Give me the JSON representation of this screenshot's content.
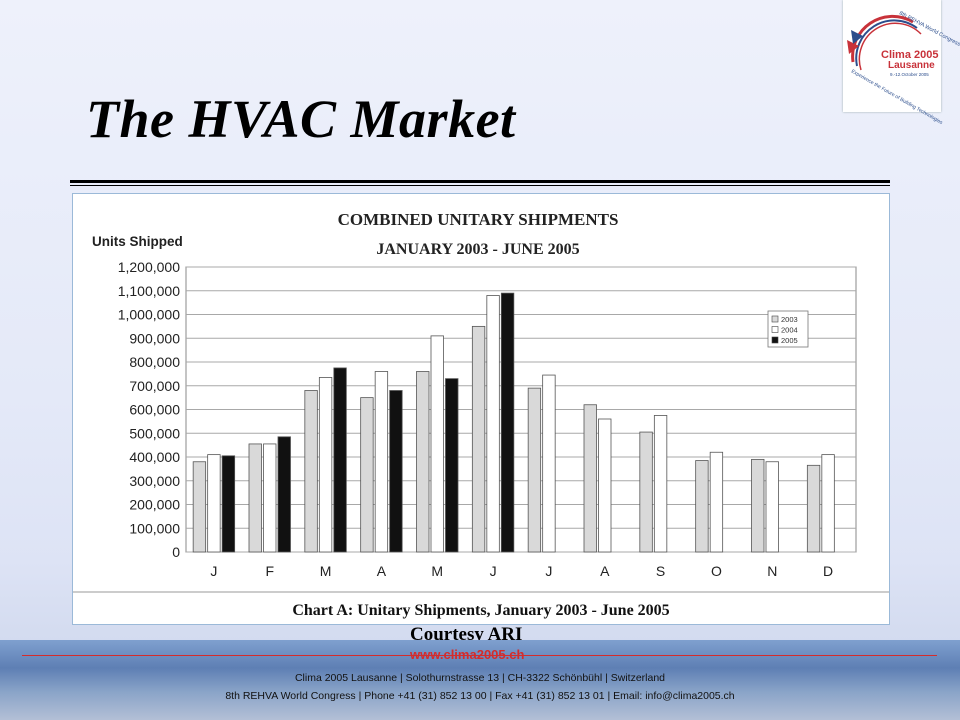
{
  "slide": {
    "title": "The HVAC Market",
    "courtesy": "Courtesy ARI"
  },
  "logo": {
    "title": "Clima 2005",
    "subtitle": "Lausanne",
    "dates": "9.-12.October 2005",
    "arc_top": "8th REHVA World Congress",
    "arc_bottom": "Experience the Future of Building Technologies"
  },
  "footer": {
    "url": "www.clima2005.ch",
    "line1": "Clima 2005 Lausanne | Solothurnstrasse 13 | CH-3322 Schönbühl | Switzerland",
    "line2": "8th REHVA World Congress | Phone +41 (31) 852 13 00 | Fax +41 (31) 852 13 01 | Email: info@clima2005.ch"
  },
  "colors": {
    "series_2003": "#d9d9d9",
    "series_2004": "#ffffff",
    "series_2005": "#111111",
    "footer_red": "#d42c2c"
  },
  "chart_data": {
    "type": "bar",
    "title": "COMBINED UNITARY SHIPMENTS",
    "subtitle": "JANUARY 2003 - JUNE 2005",
    "ylabel": "Units Shipped",
    "caption": "Chart A: Unitary Shipments, January 2003 - June 2005",
    "categories": [
      "J",
      "F",
      "M",
      "A",
      "M",
      "J",
      "J",
      "A",
      "S",
      "O",
      "N",
      "D"
    ],
    "ylim": [
      0,
      1200000
    ],
    "yticks": [
      0,
      100000,
      200000,
      300000,
      400000,
      500000,
      600000,
      700000,
      800000,
      900000,
      1000000,
      1100000,
      1200000
    ],
    "ytick_labels": [
      "0",
      "100,000",
      "200,000",
      "300,000",
      "400,000",
      "500,000",
      "600,000",
      "700,000",
      "800,000",
      "900,000",
      "1,000,000",
      "1,100,000",
      "1,200,000"
    ],
    "grid": true,
    "legend_position": "top-right",
    "series": [
      {
        "name": "2003",
        "values": [
          380000,
          455000,
          680000,
          650000,
          760000,
          950000,
          690000,
          620000,
          505000,
          385000,
          390000,
          365000
        ]
      },
      {
        "name": "2004",
        "values": [
          410000,
          455000,
          735000,
          760000,
          910000,
          1080000,
          745000,
          560000,
          575000,
          420000,
          380000,
          410000
        ]
      },
      {
        "name": "2005",
        "values": [
          405000,
          485000,
          775000,
          680000,
          730000,
          1090000,
          null,
          null,
          null,
          null,
          null,
          null
        ]
      }
    ]
  }
}
